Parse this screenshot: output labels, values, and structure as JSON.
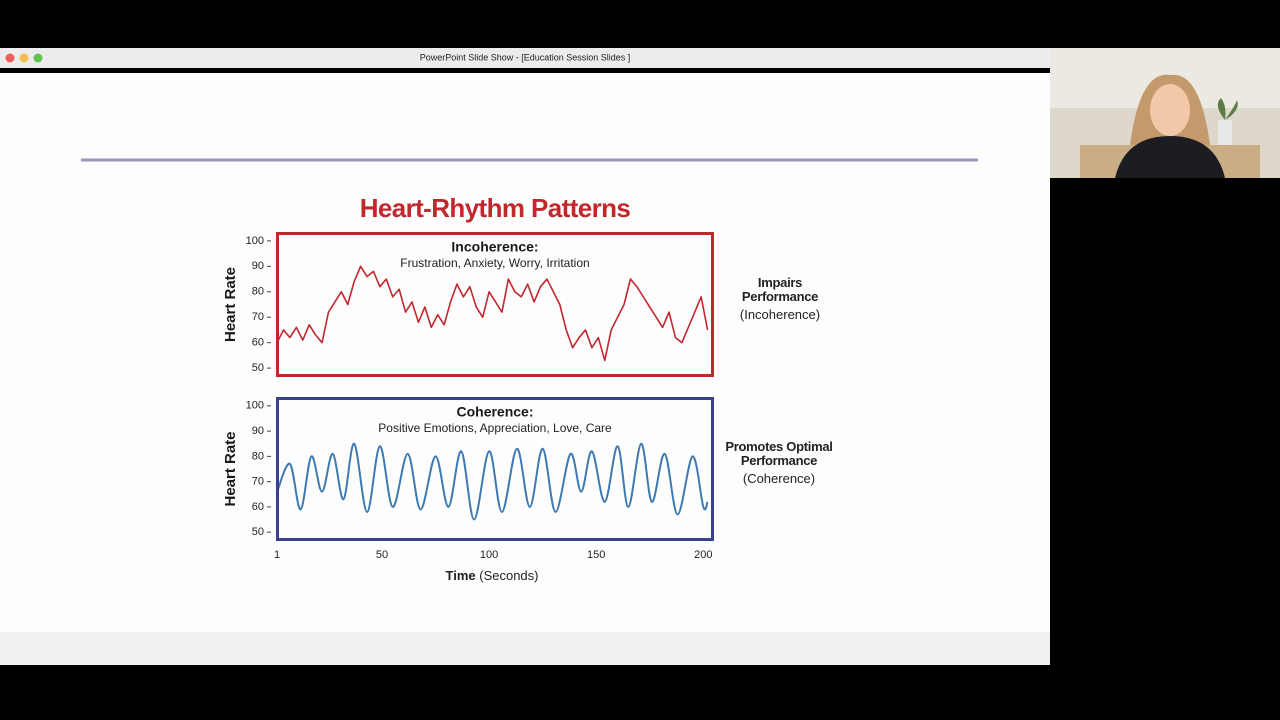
{
  "window": {
    "title": "PowerPoint Slide Show - [Education Session Slides ]"
  },
  "slide": {
    "title": "Heart-Rhythm Patterns",
    "x_label": "Time",
    "x_unit": "(Seconds)"
  },
  "chart_data": [
    {
      "type": "line",
      "title": "Incoherence:",
      "subtitle": "Frustration, Anxiety, Worry, Irritation",
      "y_label": "Heart Rate",
      "side_label": "Impairs Performance",
      "side_note": "(Incoherence)",
      "frame_color": "#c0282d",
      "smooth": false,
      "x": [
        1,
        4,
        7,
        10,
        13,
        16,
        19,
        22,
        25,
        28,
        31,
        34,
        37,
        40,
        43,
        46,
        49,
        52,
        55,
        58,
        61,
        64,
        67,
        70,
        73,
        76,
        79,
        82,
        85,
        88,
        91,
        94,
        97,
        100,
        103,
        106,
        109,
        112,
        115,
        118,
        121,
        124,
        127,
        130,
        133,
        136,
        139,
        142,
        145,
        148,
        151,
        154,
        157,
        160,
        163,
        166,
        169,
        172,
        175,
        178,
        181,
        184,
        187,
        190,
        193,
        196,
        199,
        202
      ],
      "series": [
        {
          "name": "Heart Rate",
          "color": "#c0282d",
          "values": [
            60,
            65,
            62,
            66,
            61,
            67,
            63,
            60,
            72,
            76,
            80,
            75,
            84,
            90,
            86,
            88,
            82,
            85,
            78,
            81,
            72,
            76,
            68,
            74,
            66,
            71,
            67,
            76,
            83,
            78,
            82,
            74,
            70,
            80,
            76,
            72,
            85,
            80,
            78,
            83,
            76,
            82,
            85,
            80,
            75,
            65,
            58,
            62,
            65,
            58,
            62,
            53,
            65,
            70,
            75,
            85,
            82,
            78,
            74,
            70,
            66,
            72,
            62,
            60,
            66,
            72,
            78,
            65
          ]
        }
      ],
      "xlim": [
        0.5,
        205
      ],
      "ylim": [
        46.5,
        103.5
      ],
      "yticks": [
        50,
        60,
        70,
        80,
        90,
        100
      ]
    },
    {
      "type": "line",
      "title": "Coherence:",
      "subtitle": "Positive Emotions, Appreciation, Love, Care",
      "y_label": "Heart Rate",
      "side_label": "Promotes Optimal Performance",
      "side_note": "(Coherence)",
      "frame_color": "#3a3f8f",
      "smooth": true,
      "x": [
        1,
        7,
        12,
        17,
        22,
        27,
        32,
        37,
        43,
        49,
        55,
        62,
        68,
        75,
        81,
        87,
        93,
        100,
        106,
        113,
        119,
        125,
        131,
        138,
        143,
        148,
        154,
        160,
        165,
        171,
        176,
        182,
        188,
        195,
        200,
        202
      ],
      "series": [
        {
          "name": "Heart Rate",
          "color": "#3d7ab3",
          "values": [
            66,
            77,
            59,
            80,
            66,
            81,
            63,
            85,
            58,
            84,
            60,
            81,
            59,
            80,
            60,
            82,
            55,
            82,
            58,
            83,
            60,
            83,
            58,
            81,
            66,
            82,
            62,
            84,
            60,
            85,
            62,
            81,
            57,
            80,
            60,
            62
          ]
        }
      ],
      "xlim": [
        0.5,
        205
      ],
      "ylim": [
        46.5,
        103.5
      ],
      "yticks": [
        50,
        60,
        70,
        80,
        90,
        100
      ],
      "xticks": [
        1,
        50,
        100,
        150,
        200
      ]
    }
  ]
}
